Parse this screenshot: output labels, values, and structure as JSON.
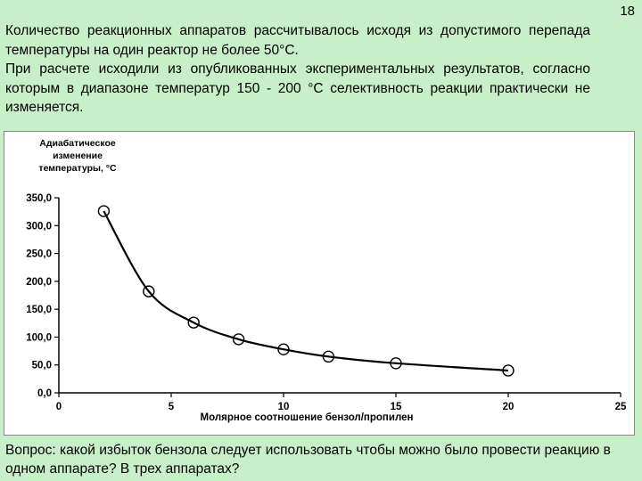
{
  "page": {
    "number": "18",
    "intro_paragraphs": [
      "Количество реакционных аппаратов рассчитывалось исходя из допустимого перепада температуры на один реактор не более 50°С.",
      "При расчете исходили из опубликованных экспериментальных результатов, согласно которым в диапазоне температур 150 - 200 °С селективность реакции практически не изменяется."
    ],
    "question": "Вопрос: какой избыток бензола следует использовать чтобы можно было провести реакцию в одном аппарате? В трех аппаратах?"
  },
  "chart_data": {
    "type": "line",
    "ylabel": "Адиабатическое изменение температуры, °С",
    "xlabel": "Молярное соотношение бензол/пропилен",
    "xlim": [
      0,
      25
    ],
    "ylim": [
      0,
      350
    ],
    "x_ticks": [
      "0",
      "5",
      "10",
      "15",
      "20",
      "25"
    ],
    "y_ticks": [
      "0,0",
      "50,0",
      "100,0",
      "150,0",
      "200,0",
      "250,0",
      "300,0",
      "350,0"
    ],
    "x_tick_values": [
      0,
      5,
      10,
      15,
      20,
      25
    ],
    "y_tick_values": [
      0,
      50,
      100,
      150,
      200,
      250,
      300,
      350
    ],
    "grid": false,
    "series": [
      {
        "x": [
          2,
          4,
          6,
          8,
          10,
          12,
          15,
          20
        ],
        "y": [
          326,
          182,
          126,
          96,
          78,
          65,
          53,
          40
        ],
        "marker": "open-circle",
        "color": "#000000"
      }
    ]
  }
}
